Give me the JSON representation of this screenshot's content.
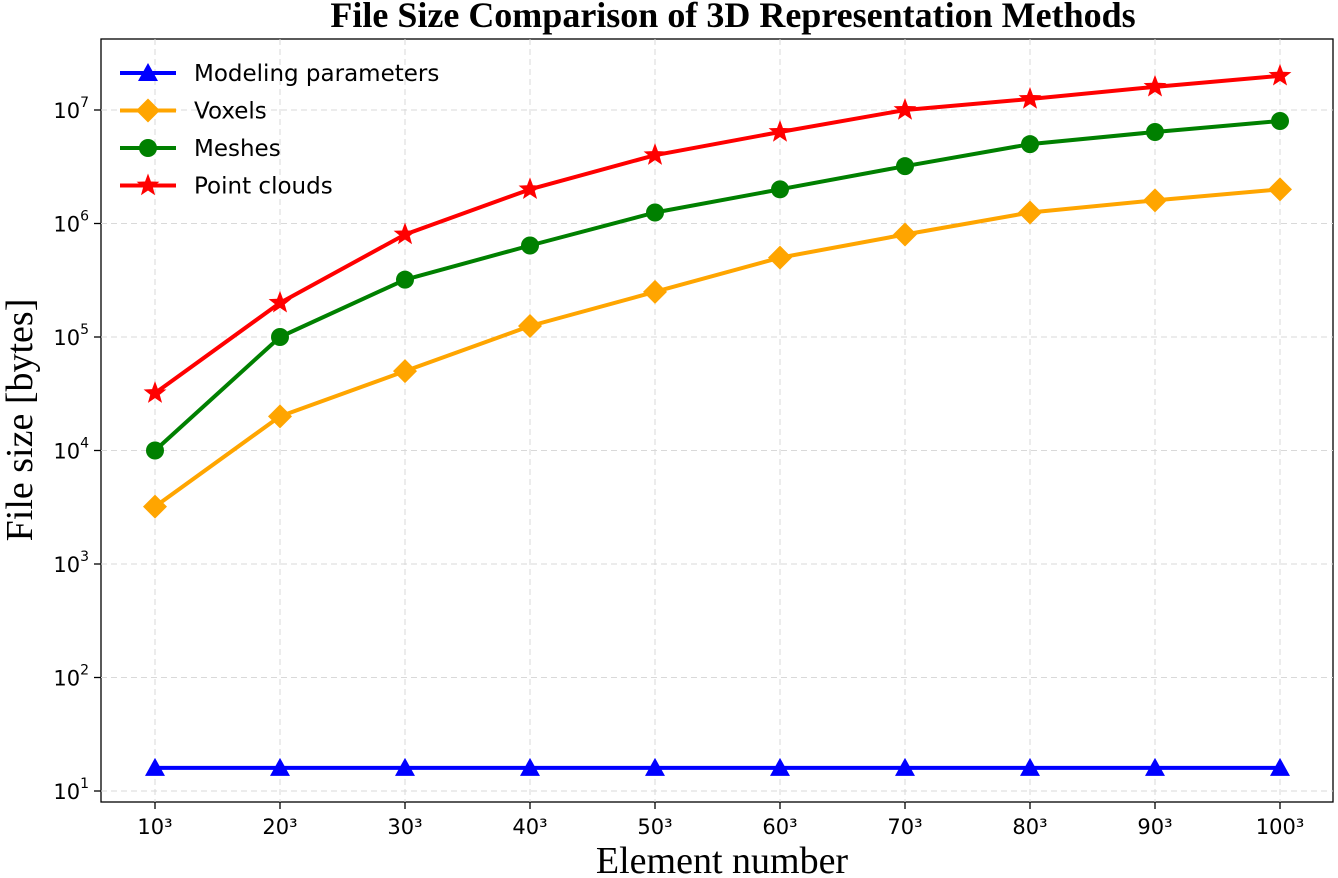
{
  "chart_data": {
    "type": "line",
    "title": "File Size Comparison of 3D Representation Methods",
    "xlabel": "Element number",
    "ylabel": "File size [bytes]",
    "yscale": "log",
    "ylim": [
      10,
      30000000
    ],
    "grid": true,
    "legend_position": "top-left",
    "categories": [
      "10³",
      "20³",
      "30³",
      "40³",
      "50³",
      "60³",
      "70³",
      "80³",
      "90³",
      "100³"
    ],
    "y_ticks": [
      {
        "value": 10,
        "base": "10",
        "exp": "1"
      },
      {
        "value": 100,
        "base": "10",
        "exp": "2"
      },
      {
        "value": 1000,
        "base": "10",
        "exp": "3"
      },
      {
        "value": 10000,
        "base": "10",
        "exp": "4"
      },
      {
        "value": 100000,
        "base": "10",
        "exp": "5"
      },
      {
        "value": 1000000,
        "base": "10",
        "exp": "6"
      },
      {
        "value": 10000000,
        "base": "10",
        "exp": "7"
      }
    ],
    "series": [
      {
        "name": "Modeling parameters",
        "color": "#0000ff",
        "marker": "triangle",
        "values": [
          16,
          16,
          16,
          16,
          16,
          16,
          16,
          16,
          16,
          16
        ]
      },
      {
        "name": "Voxels",
        "color": "#ffa500",
        "marker": "diamond",
        "values": [
          3200,
          20000,
          50000,
          125000,
          250000,
          500000,
          800000,
          1250000,
          1600000,
          2000000
        ]
      },
      {
        "name": "Meshes",
        "color": "#008000",
        "marker": "circle",
        "values": [
          10000,
          100000,
          320000,
          640000,
          1250000,
          2000000,
          3200000,
          5000000,
          6400000,
          8000000
        ]
      },
      {
        "name": "Point clouds",
        "color": "#ff0000",
        "marker": "star",
        "values": [
          32000,
          200000,
          800000,
          2000000,
          4000000,
          6400000,
          10000000,
          12500000,
          16000000,
          20000000
        ]
      }
    ]
  }
}
